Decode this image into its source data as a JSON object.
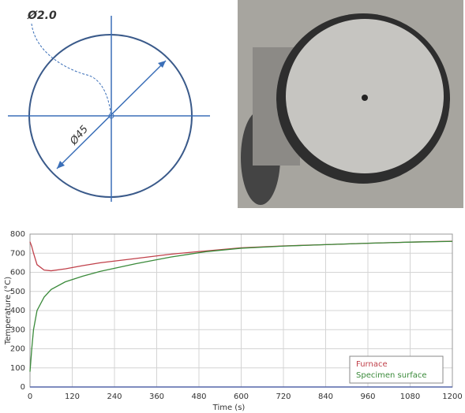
{
  "diagram": {
    "hole_label": "Ø2.0",
    "diameter_label": "Ø45"
  },
  "chart_data": {
    "type": "line",
    "x_label": "Time (s)",
    "y_label": "Temperature (°C)",
    "x": [
      0,
      5,
      10,
      20,
      40,
      60,
      100,
      150,
      200,
      300,
      400,
      500,
      600,
      720,
      840,
      960,
      1080,
      1200
    ],
    "series": [
      {
        "name": "Furnace",
        "color": "#c0404a",
        "values": [
          760,
          735,
          700,
          640,
          612,
          608,
          618,
          635,
          650,
          672,
          695,
          712,
          728,
          738,
          745,
          752,
          758,
          763
        ]
      },
      {
        "name": "Specimen surface",
        "color": "#3a8a3a",
        "values": [
          80,
          200,
          300,
          400,
          470,
          510,
          550,
          580,
          605,
          645,
          680,
          708,
          726,
          737,
          745,
          752,
          758,
          762
        ]
      }
    ],
    "xlim": [
      0,
      1200
    ],
    "xticks": [
      0,
      120,
      240,
      360,
      480,
      600,
      720,
      840,
      960,
      1080,
      1200
    ],
    "ylim": [
      0,
      800
    ],
    "yticks": [
      0,
      100,
      200,
      300,
      400,
      500,
      600,
      700,
      800
    ],
    "grid": true,
    "legend": "lower-right"
  }
}
